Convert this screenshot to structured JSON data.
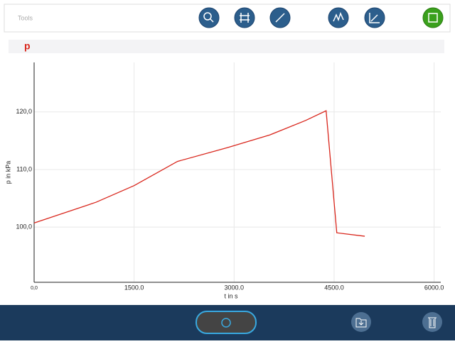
{
  "toolbar": {
    "label": "Tools"
  },
  "chart_data": {
    "type": "line",
    "title": "p",
    "x_label": "t in s",
    "y_label": "p in kPa",
    "x": [
      0,
      927,
      1500,
      2150,
      2900,
      3535,
      4070,
      4380,
      4540,
      4960
    ],
    "series": [
      {
        "name": "p",
        "color": "#d9261c",
        "values": [
          100.7,
          104.3,
          107.2,
          111.4,
          113.8,
          116.0,
          118.5,
          120.2,
          99.0,
          98.4
        ]
      }
    ],
    "xlim": [
      0,
      6100
    ],
    "ylim": [
      90.4,
      128.6
    ],
    "xticks": [
      {
        "value": 0,
        "label": "0,0"
      },
      {
        "value": 1500,
        "label": "1500.0"
      },
      {
        "value": 3000,
        "label": "3000.0"
      },
      {
        "value": 4500,
        "label": "4500.0"
      },
      {
        "value": 6000,
        "label": "6000.0"
      }
    ],
    "yticks": [
      {
        "value": 100,
        "label": "100,0"
      },
      {
        "value": 110,
        "label": "110,0"
      },
      {
        "value": 120,
        "label": "120,0"
      }
    ],
    "grid": true
  }
}
